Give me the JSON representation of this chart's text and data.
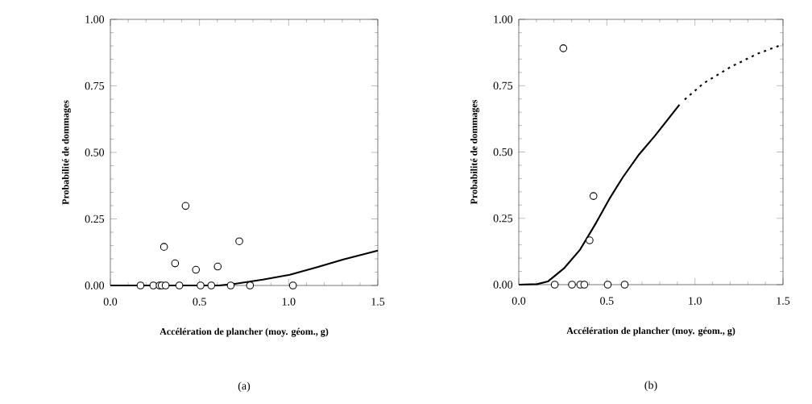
{
  "chart_data": [
    {
      "type": "scatter",
      "title": "(a)",
      "xlabel": "Accélération de plancher (moy. géom., g)",
      "ylabel": "Probabilité de dommages",
      "xlim": [
        0,
        1.5
      ],
      "ylim": [
        0,
        1
      ],
      "xticks": [
        {
          "value": 0,
          "label": "0.0"
        },
        {
          "value": 0.5,
          "label": "0.5"
        },
        {
          "value": 1,
          "label": "1.0"
        },
        {
          "value": 1.5,
          "label": "1.5"
        }
      ],
      "yticks": [
        {
          "value": 0,
          "label": "0.00"
        },
        {
          "value": 0.25,
          "label": "0.25"
        },
        {
          "value": 0.5,
          "label": "0.50"
        },
        {
          "value": 0.75,
          "label": "0.75"
        },
        {
          "value": 1,
          "label": "1.00"
        }
      ],
      "grid": false,
      "series": [
        {
          "type": "line",
          "color": "#000000",
          "marker": "none",
          "line_style": "solid",
          "x": [
            0,
            0.3,
            0.61,
            0.705,
            0.855,
            1.006,
            1.157,
            1.307,
            1.5
          ],
          "values": [
            0,
            0,
            0,
            0.007,
            0.022,
            0.04,
            0.068,
            0.098,
            0.131
          ]
        },
        {
          "color": "#000000",
          "marker": "circle",
          "x": [
            0.169,
            0.241,
            0.276,
            0.288,
            0.31,
            0.387,
            0.506,
            0.566,
            0.675,
            0.783,
            1.024,
            0.301,
            0.363,
            0.422,
            0.48,
            0.602,
            0.723
          ],
          "values": [
            0,
            0,
            0,
            0,
            0,
            0,
            0,
            0,
            0,
            0,
            0,
            0.145,
            0.083,
            0.299,
            0.059,
            0.071,
            0.166
          ]
        }
      ]
    },
    {
      "type": "scatter",
      "title": "(b)",
      "xlabel": "Accélération de plancher (moy. géom., g)",
      "ylabel": "Probabilité de dommages",
      "xlim": [
        0,
        1.5
      ],
      "ylim": [
        0,
        1
      ],
      "xticks": [
        {
          "value": 0,
          "label": "0.0"
        },
        {
          "value": 0.5,
          "label": "0.5"
        },
        {
          "value": 1,
          "label": "1.0"
        },
        {
          "value": 1.5,
          "label": "1.5"
        }
      ],
      "yticks": [
        {
          "value": 0,
          "label": "0.00"
        },
        {
          "value": 0.25,
          "label": "0.25"
        },
        {
          "value": 0.5,
          "label": "0.50"
        },
        {
          "value": 0.75,
          "label": "0.75"
        },
        {
          "value": 1,
          "label": "1.00"
        }
      ],
      "grid": false,
      "series": [
        {
          "type": "line",
          "color": "#000000",
          "marker": "none",
          "line_style": "solid",
          "x": [
            0,
            0.104,
            0.165,
            0.256,
            0.348,
            0.439,
            0.515,
            0.591,
            0.683,
            0.774,
            0.912
          ],
          "values": [
            0,
            0.002,
            0.012,
            0.061,
            0.132,
            0.233,
            0.324,
            0.405,
            0.491,
            0.562,
            0.678
          ]
        },
        {
          "type": "line",
          "color": "#000000",
          "marker": "none",
          "line_style": "dotted",
          "x": [
            0.942,
            1.049,
            1.201,
            1.354,
            1.5
          ],
          "values": [
            0.698,
            0.759,
            0.82,
            0.87,
            0.906
          ]
        },
        {
          "color": "#000000",
          "marker": "circle",
          "x": [
            0.204,
            0.302,
            0.349,
            0.372,
            0.505,
            0.601,
            0.253,
            0.424,
            0.402
          ],
          "values": [
            0,
            0,
            0,
            0,
            0,
            0,
            0.891,
            0.334,
            0.167
          ]
        }
      ]
    }
  ]
}
